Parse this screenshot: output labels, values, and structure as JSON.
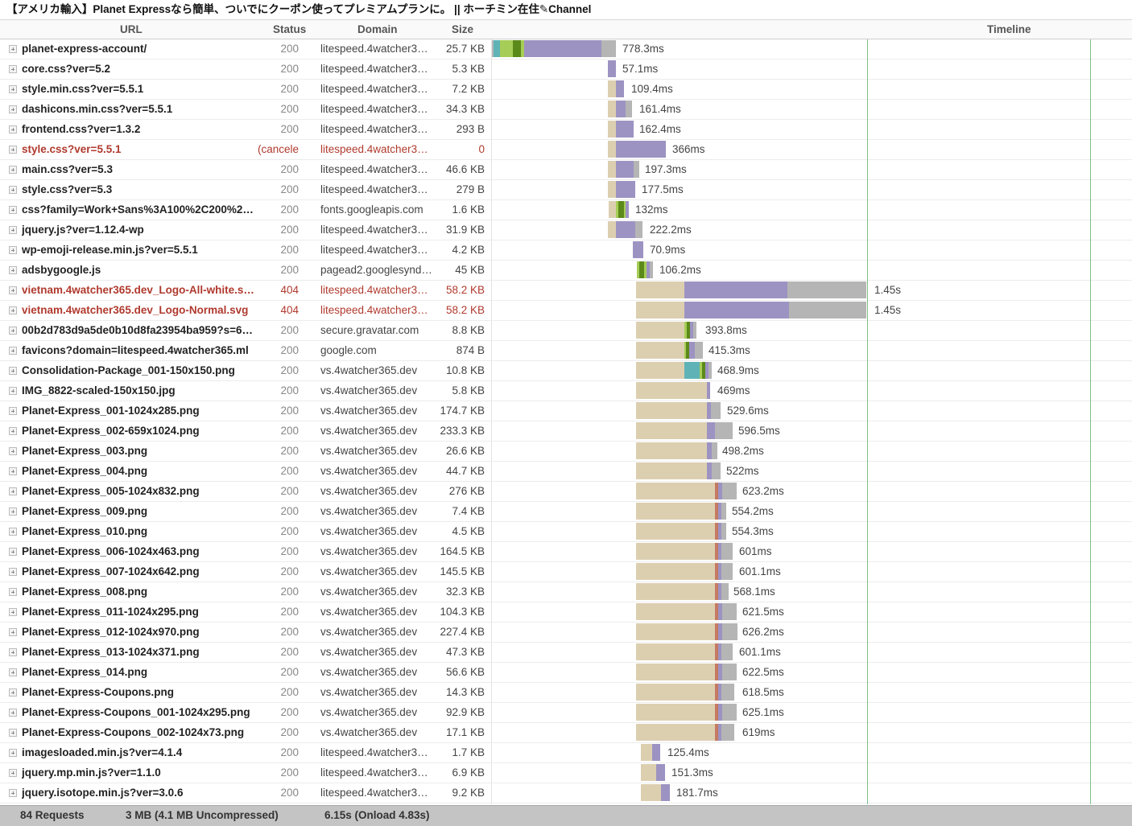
{
  "title": "【アメリカ輸入】Planet Expressなら簡単、ついでにクーポン使ってプレミアムプランに。 || ホーチミン在住✎Channel",
  "columns": {
    "url": "URL",
    "status": "Status",
    "domain": "Domain",
    "size": "Size",
    "timeline": "Timeline"
  },
  "colors": {
    "waiting": "#dccfb0",
    "dns": "#5fb3b7",
    "connect": "#a6cd57",
    "ssl": "#5c8a1a",
    "send": "#c47b62",
    "ttfb": "#9d93c2",
    "receive": "#b5b5b5",
    "error": "#b03a2e",
    "timeline_marker": "#7bc08a"
  },
  "rows": [
    {
      "url": "planet-express-account/",
      "status": "200",
      "domain": "litespeed.4watcher3…",
      "size": "25.7 KB",
      "time": "778.3ms",
      "error": false
    },
    {
      "url": "core.css?ver=5.2",
      "status": "200",
      "domain": "litespeed.4watcher3…",
      "size": "5.3 KB",
      "time": "57.1ms",
      "error": false
    },
    {
      "url": "style.min.css?ver=5.5.1",
      "status": "200",
      "domain": "litespeed.4watcher3…",
      "size": "7.2 KB",
      "time": "109.4ms",
      "error": false
    },
    {
      "url": "dashicons.min.css?ver=5.5.1",
      "status": "200",
      "domain": "litespeed.4watcher3…",
      "size": "34.3 KB",
      "time": "161.4ms",
      "error": false
    },
    {
      "url": "frontend.css?ver=1.3.2",
      "status": "200",
      "domain": "litespeed.4watcher3…",
      "size": "293 B",
      "time": "162.4ms",
      "error": false
    },
    {
      "url": "style.css?ver=5.5.1",
      "status": "(canceled)",
      "domain": "litespeed.4watcher3…",
      "size": "0",
      "time": "366ms",
      "error": true
    },
    {
      "url": "main.css?ver=5.3",
      "status": "200",
      "domain": "litespeed.4watcher3…",
      "size": "46.6 KB",
      "time": "197.3ms",
      "error": false
    },
    {
      "url": "style.css?ver=5.3",
      "status": "200",
      "domain": "litespeed.4watcher3…",
      "size": "279 B",
      "time": "177.5ms",
      "error": false
    },
    {
      "url": "css?family=Work+Sans%3A100%2C200%2…",
      "status": "200",
      "domain": "fonts.googleapis.com",
      "size": "1.6 KB",
      "time": "132ms",
      "error": false
    },
    {
      "url": "jquery.js?ver=1.12.4-wp",
      "status": "200",
      "domain": "litespeed.4watcher3…",
      "size": "31.9 KB",
      "time": "222.2ms",
      "error": false
    },
    {
      "url": "wp-emoji-release.min.js?ver=5.5.1",
      "status": "200",
      "domain": "litespeed.4watcher3…",
      "size": "4.2 KB",
      "time": "70.9ms",
      "error": false
    },
    {
      "url": "adsbygoogle.js",
      "status": "200",
      "domain": "pagead2.googlesynd…",
      "size": "45 KB",
      "time": "106.2ms",
      "error": false
    },
    {
      "url": "vietnam.4watcher365.dev_Logo-All-white.s…",
      "status": "404",
      "domain": "litespeed.4watcher3…",
      "size": "58.2 KB",
      "time": "1.45s",
      "error": true
    },
    {
      "url": "vietnam.4watcher365.dev_Logo-Normal.svg",
      "status": "404",
      "domain": "litespeed.4watcher3…",
      "size": "58.2 KB",
      "time": "1.45s",
      "error": true
    },
    {
      "url": "00b2d783d9a5de0b10d8fa23954ba959?s=6…",
      "status": "200",
      "domain": "secure.gravatar.com",
      "size": "8.8 KB",
      "time": "393.8ms",
      "error": false
    },
    {
      "url": "favicons?domain=litespeed.4watcher365.ml",
      "status": "200",
      "domain": "google.com",
      "size": "874 B",
      "time": "415.3ms",
      "error": false
    },
    {
      "url": "Consolidation-Package_001-150x150.png",
      "status": "200",
      "domain": "vs.4watcher365.dev",
      "size": "10.8 KB",
      "time": "468.9ms",
      "error": false
    },
    {
      "url": "IMG_8822-scaled-150x150.jpg",
      "status": "200",
      "domain": "vs.4watcher365.dev",
      "size": "5.8 KB",
      "time": "469ms",
      "error": false
    },
    {
      "url": "Planet-Express_001-1024x285.png",
      "status": "200",
      "domain": "vs.4watcher365.dev",
      "size": "174.7 KB",
      "time": "529.6ms",
      "error": false
    },
    {
      "url": "Planet-Express_002-659x1024.png",
      "status": "200",
      "domain": "vs.4watcher365.dev",
      "size": "233.3 KB",
      "time": "596.5ms",
      "error": false
    },
    {
      "url": "Planet-Express_003.png",
      "status": "200",
      "domain": "vs.4watcher365.dev",
      "size": "26.6 KB",
      "time": "498.2ms",
      "error": false
    },
    {
      "url": "Planet-Express_004.png",
      "status": "200",
      "domain": "vs.4watcher365.dev",
      "size": "44.7 KB",
      "time": "522ms",
      "error": false
    },
    {
      "url": "Planet-Express_005-1024x832.png",
      "status": "200",
      "domain": "vs.4watcher365.dev",
      "size": "276 KB",
      "time": "623.2ms",
      "error": false
    },
    {
      "url": "Planet-Express_009.png",
      "status": "200",
      "domain": "vs.4watcher365.dev",
      "size": "7.4 KB",
      "time": "554.2ms",
      "error": false
    },
    {
      "url": "Planet-Express_010.png",
      "status": "200",
      "domain": "vs.4watcher365.dev",
      "size": "4.5 KB",
      "time": "554.3ms",
      "error": false
    },
    {
      "url": "Planet-Express_006-1024x463.png",
      "status": "200",
      "domain": "vs.4watcher365.dev",
      "size": "164.5 KB",
      "time": "601ms",
      "error": false
    },
    {
      "url": "Planet-Express_007-1024x642.png",
      "status": "200",
      "domain": "vs.4watcher365.dev",
      "size": "145.5 KB",
      "time": "601.1ms",
      "error": false
    },
    {
      "url": "Planet-Express_008.png",
      "status": "200",
      "domain": "vs.4watcher365.dev",
      "size": "32.3 KB",
      "time": "568.1ms",
      "error": false
    },
    {
      "url": "Planet-Express_011-1024x295.png",
      "status": "200",
      "domain": "vs.4watcher365.dev",
      "size": "104.3 KB",
      "time": "621.5ms",
      "error": false
    },
    {
      "url": "Planet-Express_012-1024x970.png",
      "status": "200",
      "domain": "vs.4watcher365.dev",
      "size": "227.4 KB",
      "time": "626.2ms",
      "error": false
    },
    {
      "url": "Planet-Express_013-1024x371.png",
      "status": "200",
      "domain": "vs.4watcher365.dev",
      "size": "47.3 KB",
      "time": "601.1ms",
      "error": false
    },
    {
      "url": "Planet-Express_014.png",
      "status": "200",
      "domain": "vs.4watcher365.dev",
      "size": "56.6 KB",
      "time": "622.5ms",
      "error": false
    },
    {
      "url": "Planet-Express-Coupons.png",
      "status": "200",
      "domain": "vs.4watcher365.dev",
      "size": "14.3 KB",
      "time": "618.5ms",
      "error": false
    },
    {
      "url": "Planet-Express-Coupons_001-1024x295.png",
      "status": "200",
      "domain": "vs.4watcher365.dev",
      "size": "92.9 KB",
      "time": "625.1ms",
      "error": false
    },
    {
      "url": "Planet-Express-Coupons_002-1024x73.png",
      "status": "200",
      "domain": "vs.4watcher365.dev",
      "size": "17.1 KB",
      "time": "619ms",
      "error": false
    },
    {
      "url": "imagesloaded.min.js?ver=4.1.4",
      "status": "200",
      "domain": "litespeed.4watcher3…",
      "size": "1.7 KB",
      "time": "125.4ms",
      "error": false
    },
    {
      "url": "jquery.mp.min.js?ver=1.1.0",
      "status": "200",
      "domain": "litespeed.4watcher3…",
      "size": "6.9 KB",
      "time": "151.3ms",
      "error": false
    },
    {
      "url": "jquery.isotope.min.js?ver=3.0.6",
      "status": "200",
      "domain": "litespeed.4watcher3…",
      "size": "9.2 KB",
      "time": "181.7ms",
      "error": false
    }
  ],
  "footer": {
    "requests": "84 Requests",
    "size": "3 MB  (4.1 MB Uncompressed)",
    "time": "6.15s  (Onload 4.83s)"
  }
}
